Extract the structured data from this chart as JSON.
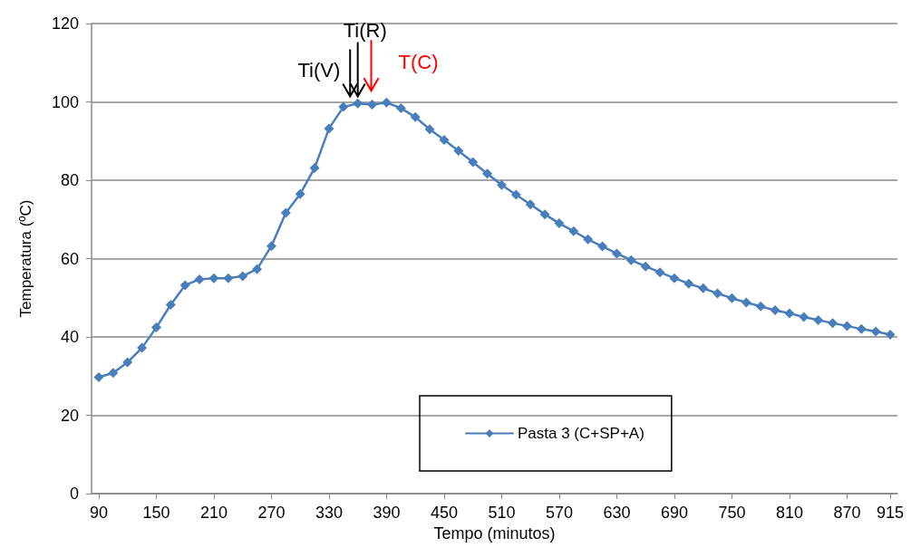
{
  "chart_data": {
    "type": "line",
    "xlabel": "Tempo (minutos)",
    "ylabel": "Temperatura (ºC)",
    "x": [
      90,
      105,
      120,
      135,
      150,
      165,
      180,
      195,
      210,
      225,
      240,
      255,
      270,
      285,
      300,
      315,
      330,
      345,
      360,
      375,
      390,
      405,
      420,
      435,
      450,
      465,
      480,
      495,
      510,
      525,
      540,
      555,
      570,
      585,
      600,
      615,
      630,
      645,
      660,
      675,
      690,
      705,
      720,
      735,
      750,
      765,
      780,
      795,
      810,
      825,
      840,
      855,
      870,
      885,
      900,
      915
    ],
    "series": [
      {
        "name": "Pasta 3 (C+SP+A)",
        "color": "#4a7ebb",
        "values": [
          29.7,
          30.8,
          33.5,
          37.2,
          42.4,
          48.2,
          53.2,
          54.7,
          55.0,
          55.0,
          55.5,
          57.3,
          63.2,
          71.7,
          76.5,
          83.1,
          93.2,
          98.7,
          99.6,
          99.3,
          99.8,
          98.4,
          96.1,
          93.0,
          90.3,
          87.5,
          84.6,
          81.7,
          78.8,
          76.3,
          73.8,
          71.3,
          69.0,
          67.0,
          64.9,
          63.1,
          61.3,
          59.6,
          58.0,
          56.5,
          55.0,
          53.6,
          52.4,
          51.1,
          49.9,
          48.8,
          47.8,
          46.8,
          46.0,
          45.1,
          44.3,
          43.5,
          42.8,
          42.0,
          41.4,
          40.6
        ]
      }
    ],
    "xlim": [
      82.5,
      922.5
    ],
    "xticks": [
      90,
      150,
      210,
      270,
      330,
      390,
      450,
      510,
      570,
      630,
      690,
      750,
      810,
      870,
      915
    ],
    "ylim": [
      0,
      120
    ],
    "yticks": [
      0,
      20,
      40,
      60,
      80,
      100,
      120
    ],
    "grid": "y",
    "legend": "bottom",
    "marker": "diamond",
    "line_style": "solid",
    "annotations": [
      {
        "text": "Ti(V)",
        "x": 352,
        "y": 100
      },
      {
        "text": "Ti(R)",
        "x": 360,
        "y": 100
      },
      {
        "text": "T(C)",
        "x": 374,
        "y": 101
      }
    ]
  }
}
